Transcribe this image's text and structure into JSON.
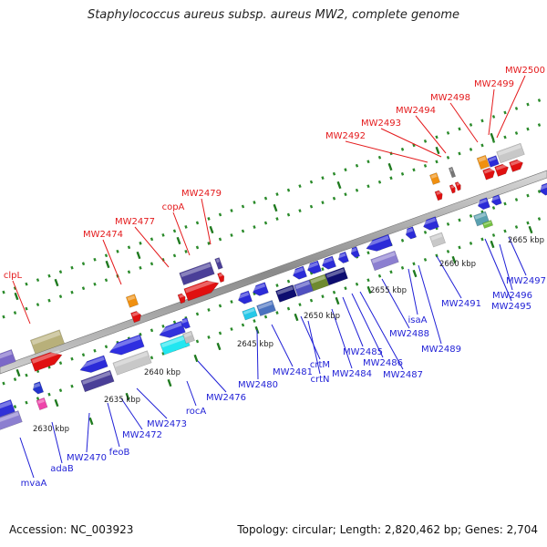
{
  "title": "Staphylococcus aureus subsp. aureus MW2, complete genome",
  "footer": {
    "accession": "Accession: NC_003923",
    "summary": "Topology: circular; Length: 2,820,462 bp; Genes: 2,704"
  },
  "colors": {
    "forward_label": "#e41a1c",
    "reverse_label": "#1f1fd6",
    "backbone": "#a6a6a6",
    "tick": "#2a8a2a"
  },
  "scale_labels": [
    "2630 kbp",
    "2635 kbp",
    "2640 kbp",
    "2645 kbp",
    "2650 kbp",
    "2655 kbp",
    "2660 kbp",
    "2665 kbp"
  ],
  "forward_genes": [
    "clpL",
    "MW2474",
    "MW2477",
    "copA",
    "MW2479",
    "MW2492",
    "MW2493",
    "MW2494",
    "MW2498",
    "MW2499",
    "MW2500"
  ],
  "reverse_genes": [
    "mvaA",
    "adaB",
    "MW2470",
    "feoB",
    "MW2472",
    "MW2473",
    "rocA",
    "MW2476",
    "MW2480",
    "MW2481",
    "crtN",
    "crtM",
    "MW2484",
    "MW2485",
    "MW2486",
    "MW2487",
    "MW2488",
    "isaA",
    "MW2489",
    "MW2491",
    "MW2495",
    "MW2496",
    "MW2497"
  ]
}
